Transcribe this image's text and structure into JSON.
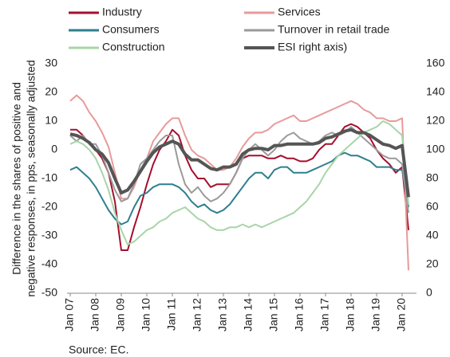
{
  "chart_data": {
    "type": "line",
    "y_label": [
      "Difference in the shares of positive and",
      "negative responses, in pps, seasonally adjusted"
    ],
    "source": "Source: EC.",
    "categories": [
      "Jan 07",
      null,
      null,
      null,
      "Jan 08",
      null,
      null,
      null,
      "Jan 09",
      null,
      null,
      null,
      "Jan 10",
      null,
      null,
      null,
      "Jan 11",
      null,
      null,
      null,
      "Jan 12",
      null,
      null,
      null,
      "Jan 13",
      null,
      null,
      null,
      "Jan 14",
      null,
      null,
      null,
      "Jan 15",
      null,
      null,
      null,
      "Jan 16",
      null,
      null,
      null,
      "Jan 17",
      null,
      null,
      null,
      "Jan 18",
      null,
      null,
      null,
      "Jan 19",
      null,
      null,
      null,
      "Jan 20",
      null
    ],
    "ylim": [
      -50,
      30
    ],
    "yticks": [
      -50,
      -40,
      -30,
      -20,
      -10,
      0,
      10,
      20,
      30
    ],
    "y2lim": [
      0,
      160
    ],
    "y2ticks": [
      0,
      20,
      40,
      60,
      80,
      100,
      120,
      140,
      160
    ],
    "grid": false,
    "series": [
      {
        "name": "Industry",
        "color": "#a50f2d",
        "values": [
          7,
          7,
          5,
          2,
          0,
          -3,
          -8,
          -18,
          -35,
          -35,
          -27,
          -20,
          -12,
          -5,
          0,
          3,
          7,
          5,
          -2,
          -7,
          -10,
          -10,
          -13,
          -12,
          -12,
          -12,
          -8,
          -3,
          -2,
          -2,
          -2,
          -3,
          -3,
          -2,
          -3,
          -3,
          -4,
          -4,
          -3,
          0,
          2,
          2,
          5,
          8,
          9,
          8,
          6,
          4,
          0,
          -3,
          -5,
          -8,
          -6,
          -28
        ]
      },
      {
        "name": "Services",
        "color": "#e89a9a",
        "values": [
          17,
          19,
          17,
          13,
          10,
          6,
          1,
          -8,
          -17,
          -17,
          -13,
          -7,
          -3,
          3,
          6,
          9,
          11,
          11,
          5,
          0,
          -2,
          -3,
          -5,
          -7,
          -7,
          -6,
          -3,
          1,
          4,
          6,
          6,
          7,
          9,
          10,
          11,
          12,
          10,
          10,
          11,
          12,
          13,
          14,
          15,
          16,
          17,
          16,
          14,
          13,
          11,
          11,
          10,
          10,
          11,
          -42
        ]
      },
      {
        "name": "Consumers",
        "color": "#2e7f8e",
        "values": [
          -7,
          -6,
          -8,
          -10,
          -13,
          -17,
          -21,
          -24,
          -26,
          -25,
          -20,
          -16,
          -15,
          -13,
          -12,
          -12,
          -12,
          -13,
          -15,
          -18,
          -20,
          -19,
          -21,
          -22,
          -21,
          -19,
          -16,
          -13,
          -10,
          -8,
          -8,
          -10,
          -7,
          -6,
          -6,
          -8,
          -8,
          -8,
          -7,
          -6,
          -5,
          -4,
          -2,
          -1,
          -2,
          -2,
          -3,
          -4,
          -6,
          -6,
          -6,
          -7,
          -7,
          -20
        ]
      },
      {
        "name": "Turnover in retail trade",
        "color": "#9a9a9a",
        "values": [
          5,
          3,
          5,
          2,
          2,
          -2,
          -8,
          -14,
          -18,
          -17,
          -12,
          -5,
          -3,
          0,
          3,
          5,
          5,
          -5,
          -12,
          -15,
          -13,
          -16,
          -18,
          -17,
          -15,
          -12,
          -8,
          -3,
          0,
          2,
          0,
          -2,
          0,
          3,
          5,
          6,
          4,
          3,
          2,
          3,
          5,
          6,
          5,
          6,
          8,
          6,
          4,
          2,
          0,
          -2,
          -3,
          -3,
          -5,
          -22
        ]
      },
      {
        "name": "Construction",
        "color": "#a8d5a8",
        "values": [
          2,
          3,
          2,
          0,
          -3,
          -8,
          -14,
          -22,
          -28,
          -33,
          -32,
          -30,
          -28,
          -27,
          -25,
          -24,
          -22,
          -21,
          -20,
          -22,
          -24,
          -25,
          -27,
          -28,
          -28,
          -27,
          -27,
          -26,
          -27,
          -26,
          -27,
          -26,
          -25,
          -24,
          -23,
          -22,
          -20,
          -18,
          -15,
          -12,
          -8,
          -5,
          -2,
          0,
          2,
          4,
          6,
          7,
          8,
          10,
          9,
          7,
          5,
          -19
        ]
      },
      {
        "name": "ESI right axis)",
        "color": "#555555",
        "axis": "y2",
        "values": [
          111,
          110,
          108,
          105,
          100,
          97,
          91,
          80,
          70,
          72,
          78,
          85,
          92,
          98,
          102,
          104,
          106,
          104,
          97,
          93,
          93,
          90,
          87,
          86,
          88,
          88,
          90,
          97,
          100,
          101,
          101,
          100,
          103,
          103,
          104,
          104,
          104,
          104,
          104,
          105,
          108,
          109,
          111,
          113,
          114,
          112,
          112,
          110,
          107,
          104,
          103,
          101,
          103,
          67
        ]
      }
    ]
  }
}
